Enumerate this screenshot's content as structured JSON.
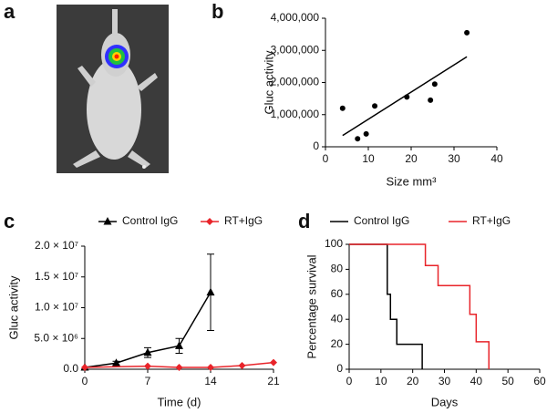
{
  "chart_data": [
    {
      "type": "image",
      "panel": "a"
    },
    {
      "type": "scatter",
      "panel": "b",
      "x_label": "Size mm³",
      "y_label": "Gluc activity",
      "x": [
        4,
        7.5,
        9.5,
        11.5,
        19,
        24.5,
        25.5,
        33
      ],
      "values": [
        1200000,
        250000,
        400000,
        1270000,
        1550000,
        1450000,
        1950000,
        3550000
      ],
      "color": "#000000",
      "fit_line": {
        "x": [
          4,
          33
        ],
        "values": [
          350000,
          2800000
        ]
      },
      "xlim": [
        0,
        40
      ],
      "xticks": [
        0,
        10,
        20,
        30,
        40
      ],
      "ylim": [
        0,
        4000000
      ],
      "yticks": [
        0,
        {
          "value": 1000000,
          "label": "1,000,000"
        },
        {
          "value": 2000000,
          "label": "2,000,000"
        },
        {
          "value": 3000000,
          "label": "3,000,000"
        },
        {
          "value": 4000000,
          "label": "4,000,000"
        }
      ]
    },
    {
      "type": "line",
      "panel": "c",
      "x_label": "Time (d)",
      "y_label": "Gluc activity",
      "series": [
        {
          "name": "Control IgG",
          "color": "#000000",
          "marker": "triangle",
          "x": [
            0,
            3.5,
            7,
            10.5,
            14
          ],
          "values": [
            300000,
            1000000,
            2700000,
            3800000,
            12500000
          ],
          "errors": [
            null,
            300000,
            800000,
            1200000,
            6200000
          ]
        },
        {
          "name": "RT+IgG",
          "color": "#e8242a",
          "marker": "diamond",
          "x": [
            0,
            7,
            10.5,
            14,
            17.5,
            21
          ],
          "values": [
            300000,
            500000,
            300000,
            300000,
            600000,
            1100000
          ]
        }
      ],
      "xlim": [
        0,
        21
      ],
      "xticks": [
        0,
        7,
        14,
        21
      ],
      "ylim": [
        0,
        20000000
      ],
      "yticks": [
        {
          "value": 0,
          "label": "0.0"
        },
        {
          "value": 5000000,
          "label": "5.0 × 10⁶"
        },
        {
          "value": 10000000,
          "label": "1.0 × 10⁷"
        },
        {
          "value": 15000000,
          "label": "1.5 × 10⁷"
        },
        {
          "value": 20000000,
          "label": "2.0 × 10⁷"
        }
      ]
    },
    {
      "type": "step",
      "panel": "d",
      "x_label": "Days",
      "y_label": "Percentage survival",
      "series": [
        {
          "name": "Control IgG",
          "color": "#000000",
          "x": [
            0,
            12,
            13,
            15,
            23
          ],
          "values": [
            100,
            60,
            40,
            20,
            0
          ]
        },
        {
          "name": "RT+IgG",
          "color": "#e8242a",
          "x": [
            0,
            24,
            28,
            38,
            40,
            44
          ],
          "values": [
            100,
            83,
            67,
            44,
            22,
            0
          ]
        }
      ],
      "xlim": [
        0,
        60
      ],
      "xticks": [
        0,
        10,
        20,
        30,
        40,
        50,
        60
      ],
      "ylim": [
        0,
        100
      ],
      "yticks": [
        0,
        20,
        40,
        60,
        80,
        100
      ]
    }
  ]
}
